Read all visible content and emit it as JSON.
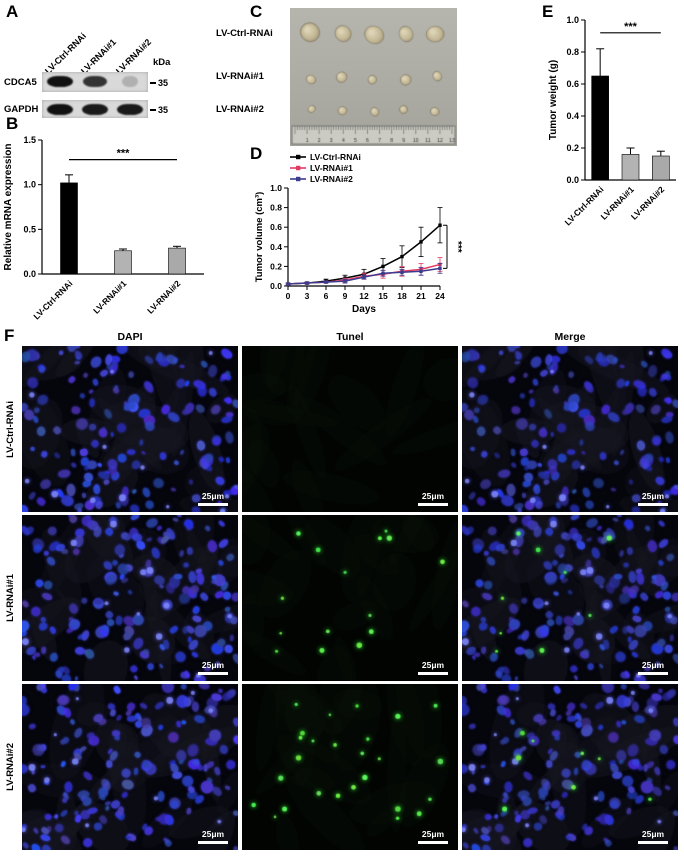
{
  "panels": {
    "A": {
      "label": "A",
      "lanes": [
        "LV-Ctrl-RNAi",
        "LV-RNAi#1",
        "LV-RNAi#2"
      ],
      "kda_label": "kDa",
      "rows": [
        {
          "protein": "CDCA5",
          "kda": "35",
          "band_intensities": [
            1.0,
            0.8,
            0.06
          ]
        },
        {
          "protein": "GAPDH",
          "kda": "35",
          "band_intensities": [
            1.0,
            0.95,
            0.95
          ]
        }
      ]
    },
    "B": {
      "label": "B"
    },
    "C": {
      "label": "C",
      "rows": [
        "LV-Ctrl-RNAi",
        "LV-RNAi#1",
        "LV-RNAi#2"
      ],
      "tumor_rows": [
        [
          19,
          17,
          20,
          16,
          18
        ],
        [
          10,
          11,
          9,
          11,
          10
        ],
        [
          8,
          9,
          9,
          8,
          9
        ]
      ]
    },
    "D": {
      "label": "D"
    },
    "E": {
      "label": "E"
    },
    "F": {
      "label": "F",
      "columns": [
        "DAPI",
        "Tunel",
        "Merge"
      ],
      "rows": [
        "LV-Ctrl-RNAi",
        "LV-RNAi#1",
        "LV-RNAi#2"
      ],
      "scale_bar": "25μm",
      "cells": [
        {
          "mode": "dapi",
          "seed": 11
        },
        {
          "mode": "tunel",
          "seed": 12,
          "green": 0,
          "greenSeed": 101
        },
        {
          "mode": "merge",
          "seed": 11,
          "green": 0,
          "greenSeed": 101
        },
        {
          "mode": "dapi",
          "seed": 21
        },
        {
          "mode": "tunel",
          "seed": 22,
          "green": 15,
          "greenSeed": 202
        },
        {
          "mode": "merge",
          "seed": 21,
          "green": 9,
          "greenSeed": 202
        },
        {
          "mode": "dapi",
          "seed": 31
        },
        {
          "mode": "tunel",
          "seed": 32,
          "green": 26,
          "greenSeed": 303
        },
        {
          "mode": "merge",
          "seed": 31,
          "green": 8,
          "greenSeed": 303
        }
      ]
    }
  },
  "chart_data": [
    {
      "id": "B",
      "type": "bar",
      "categories": [
        "LV-Ctrl-RNAi",
        "LV-RNAi#1",
        "LV-RNAi#2"
      ],
      "values": [
        1.02,
        0.26,
        0.29
      ],
      "errors": [
        0.09,
        0.02,
        0.02
      ],
      "bar_colors": [
        "#000000",
        "#b3b3b3",
        "#a9a9a9"
      ],
      "title": "",
      "xlabel": "",
      "ylabel": "Relative mRNA expression",
      "ylim": [
        0,
        1.5
      ],
      "yticks": [
        0,
        0.5,
        1.0,
        1.5
      ],
      "significance": "***",
      "sig_y": 1.28
    },
    {
      "id": "D",
      "type": "line",
      "x": [
        0,
        3,
        6,
        9,
        12,
        15,
        18,
        21,
        24
      ],
      "xticks": [
        0,
        3,
        6,
        9,
        12,
        15,
        18,
        21,
        24
      ],
      "series": [
        {
          "name": "LV-Ctrl-RNAi",
          "color": "#000000",
          "values": [
            0.02,
            0.03,
            0.05,
            0.08,
            0.12,
            0.2,
            0.3,
            0.45,
            0.62
          ],
          "errors": [
            0.01,
            0.01,
            0.02,
            0.03,
            0.05,
            0.08,
            0.11,
            0.15,
            0.18
          ]
        },
        {
          "name": "LV-RNAi#1",
          "color": "#e23b63",
          "values": [
            0.02,
            0.03,
            0.04,
            0.06,
            0.1,
            0.12,
            0.15,
            0.17,
            0.22
          ],
          "errors": [
            0.01,
            0.01,
            0.01,
            0.02,
            0.03,
            0.04,
            0.05,
            0.06,
            0.07
          ]
        },
        {
          "name": "LV-RNAi#2",
          "color": "#3c3c8e",
          "values": [
            0.02,
            0.03,
            0.04,
            0.05,
            0.09,
            0.13,
            0.14,
            0.15,
            0.18
          ],
          "errors": [
            0.01,
            0.01,
            0.01,
            0.02,
            0.02,
            0.03,
            0.03,
            0.04,
            0.05
          ]
        }
      ],
      "xlabel": "Days",
      "ylabel": "Tumor volume (cm³)",
      "ylim": [
        0,
        1.0
      ],
      "yticks": [
        0,
        0.2,
        0.4,
        0.6,
        0.8,
        1.0
      ],
      "legend_position": "top-left",
      "significance": "***"
    },
    {
      "id": "E",
      "type": "bar",
      "categories": [
        "LV-Ctrl-RNAi",
        "LV-RNAi#1",
        "LV-RNAi#2"
      ],
      "values": [
        0.65,
        0.16,
        0.15
      ],
      "errors": [
        0.17,
        0.04,
        0.03
      ],
      "bar_colors": [
        "#000000",
        "#b3b3b3",
        "#a9a9a9"
      ],
      "title": "",
      "xlabel": "",
      "ylabel": "Tumor weight (g)",
      "ylim": [
        0,
        1.0
      ],
      "yticks": [
        0,
        0.2,
        0.4,
        0.6,
        0.8,
        1.0
      ],
      "significance": "***",
      "sig_y": 0.92
    }
  ]
}
